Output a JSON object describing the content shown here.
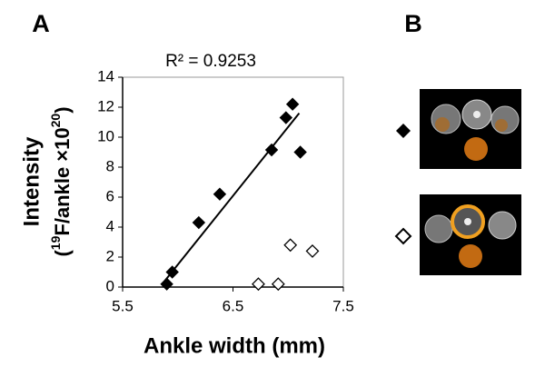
{
  "panels": {
    "left": "A",
    "right": "B"
  },
  "chart_data": {
    "type": "scatter",
    "annotation": "R² = 0.9253",
    "xlabel": "Ankle width (mm)",
    "ylabel": {
      "line1": "Intensity",
      "line2": [
        "(",
        "19",
        "F/ankle ×10",
        "20",
        ")"
      ]
    },
    "xlim": [
      5.5,
      7.5
    ],
    "xticks": [
      5.5,
      6.5,
      7.5
    ],
    "ylim": [
      0,
      14
    ],
    "yticks": [
      0,
      2,
      4,
      6,
      8,
      10,
      12,
      14
    ],
    "series": [
      {
        "color": "#000000",
        "filled": true,
        "x": [
          5.9,
          5.95,
          6.19,
          6.38,
          6.85,
          6.98,
          7.04,
          7.11
        ],
        "values": [
          0.2,
          1.0,
          4.3,
          6.2,
          9.15,
          11.3,
          12.2,
          9.0
        ]
      },
      {
        "color": "#000000",
        "filled": false,
        "x": [
          6.73,
          6.91,
          7.02,
          7.22
        ],
        "values": [
          0.2,
          0.2,
          2.8,
          2.4
        ]
      }
    ],
    "trendline": {
      "color": "#000000",
      "x": [
        5.87,
        7.1
      ],
      "values": [
        0.3,
        11.6
      ]
    }
  }
}
